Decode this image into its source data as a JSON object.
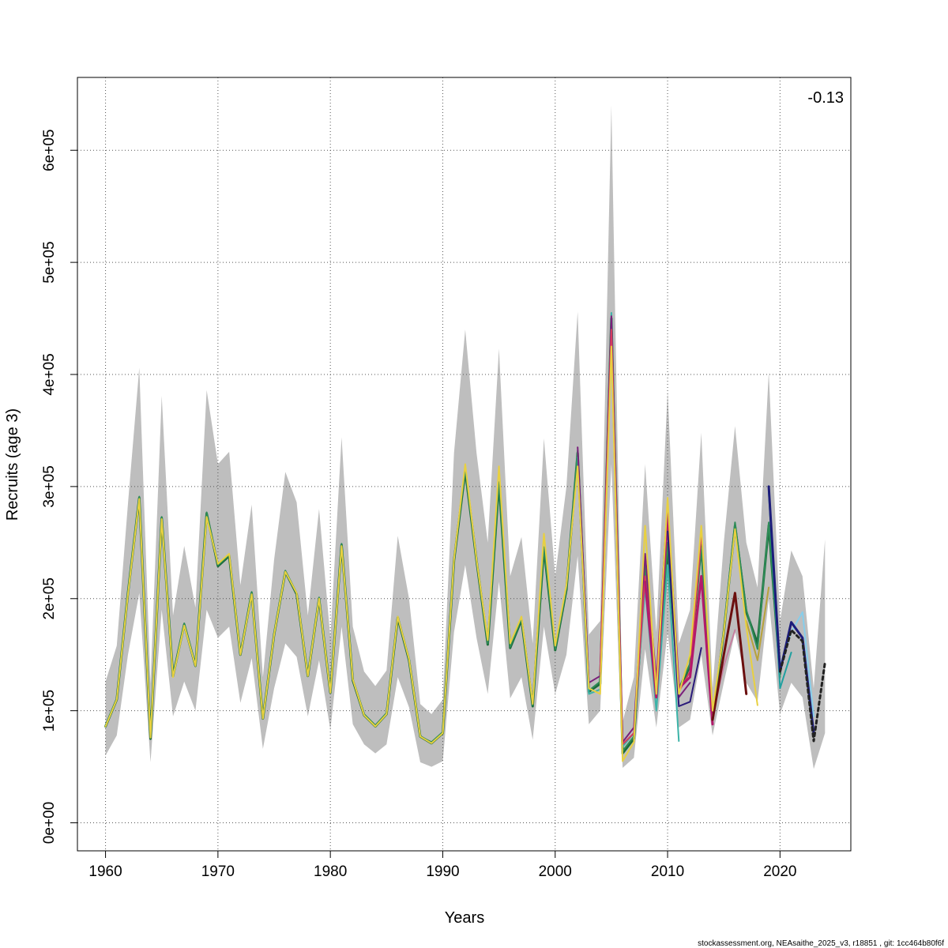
{
  "chart_data": {
    "type": "line",
    "title": "",
    "xlabel": "Years",
    "ylabel": "Recruits (age 3)",
    "annotation": "-0.13",
    "footer": "stockassessment.org, NEAsaithe_2025_v3, r18851 , git: 1cc464b80f6f",
    "xlim": [
      1957.5,
      2026.3
    ],
    "ylim": [
      -25000,
      665000
    ],
    "x_ticks": [
      1960,
      1970,
      1980,
      1990,
      2000,
      2010,
      2020
    ],
    "x_tick_labels": [
      "1960",
      "1970",
      "1980",
      "1990",
      "2000",
      "2010",
      "2020"
    ],
    "y_ticks": [
      0,
      100000,
      200000,
      300000,
      400000,
      500000,
      600000
    ],
    "y_tick_labels": [
      "0e+00",
      "1e+05",
      "2e+05",
      "3e+05",
      "4e+05",
      "5e+05",
      "6e+05"
    ],
    "grid": true,
    "confidence_band": {
      "name": "95% CI",
      "color": "#bebebe",
      "x": [
        1960,
        1961,
        1962,
        1963,
        1964,
        1965,
        1966,
        1967,
        1968,
        1969,
        1970,
        1971,
        1972,
        1973,
        1974,
        1975,
        1976,
        1977,
        1978,
        1979,
        1980,
        1981,
        1982,
        1983,
        1984,
        1985,
        1986,
        1987,
        1988,
        1989,
        1990,
        1991,
        1992,
        1993,
        1994,
        1995,
        1996,
        1997,
        1998,
        1999,
        2000,
        2001,
        2002,
        2003,
        2004,
        2005,
        2006,
        2007,
        2008,
        2009,
        2010,
        2011,
        2012,
        2013,
        2014,
        2015,
        2016,
        2017,
        2018,
        2019,
        2020,
        2021,
        2022,
        2023,
        2024
      ],
      "upper": [
        126000,
        158000,
        285000,
        406000,
        124000,
        381000,
        185000,
        247000,
        192000,
        386000,
        320000,
        331000,
        212000,
        284000,
        130000,
        235000,
        313000,
        286000,
        185000,
        280000,
        165000,
        344000,
        175000,
        135000,
        122000,
        136000,
        256000,
        200000,
        106000,
        97000,
        110000,
        330000,
        440000,
        330000,
        250000,
        423000,
        220000,
        255000,
        160000,
        343000,
        220000,
        300000,
        456000,
        168000,
        180000,
        640000,
        90000,
        130000,
        320000,
        170000,
        385000,
        160000,
        190000,
        348000,
        120000,
        250000,
        354000,
        250000,
        210000,
        402000,
        180000,
        243000,
        220000,
        120000,
        253000
      ],
      "lower": [
        60000,
        78000,
        150000,
        205000,
        54000,
        190000,
        95000,
        126000,
        100000,
        190000,
        165000,
        175000,
        107000,
        147000,
        66000,
        120000,
        160000,
        148000,
        95000,
        145000,
        83000,
        175000,
        88000,
        70000,
        62000,
        70000,
        130000,
        103000,
        54000,
        50000,
        55000,
        170000,
        230000,
        165000,
        115000,
        215000,
        111000,
        130000,
        74000,
        175000,
        115000,
        150000,
        238000,
        88000,
        100000,
        320000,
        49000,
        58000,
        155000,
        85000,
        170000,
        85000,
        92000,
        150000,
        78000,
        125000,
        170000,
        125000,
        108000,
        200000,
        97000,
        125000,
        112000,
        48000,
        80000
      ]
    },
    "series": [
      {
        "name": "",
        "color": "#1b6b3a",
        "width": 3,
        "dash": "",
        "x": [
          1960,
          1961,
          1962,
          1963,
          1964,
          1965,
          1966,
          1967,
          1968,
          1969,
          1970,
          1971,
          1972,
          1973,
          1974,
          1975,
          1976,
          1977,
          1978,
          1979,
          1980,
          1981,
          1982,
          1983,
          1984,
          1985,
          1986,
          1987,
          1988,
          1989,
          1990,
          1991,
          1992,
          1993,
          1994,
          1995,
          1996,
          1997,
          1998,
          1999,
          2000,
          2001,
          2002,
          2003,
          2004,
          2005,
          2006,
          2007,
          2008,
          2009,
          2010,
          2011,
          2012,
          2013,
          2014,
          2015,
          2016,
          2017,
          2018,
          2019,
          2020
        ],
        "values": [
          86000,
          110000,
          205000,
          290000,
          75000,
          272000,
          131000,
          177000,
          140000,
          276000,
          229000,
          238000,
          150000,
          205000,
          93000,
          168000,
          224000,
          204000,
          131000,
          200000,
          116000,
          248000,
          127000,
          96000,
          86000,
          97000,
          183000,
          145000,
          77000,
          71000,
          80000,
          234000,
          314000,
          234000,
          159000,
          303000,
          156000,
          181000,
          104000,
          245000,
          154000,
          208000,
          330000,
          117000,
          124000,
          450000,
          62000,
          75000,
          225000,
          115000,
          245000,
          118000,
          140000,
          248000,
          92000,
          170000,
          265000,
          188000,
          160000,
          265000,
          133000
        ]
      },
      {
        "name": "",
        "color": "#2e8b57",
        "width": 2,
        "dash": "",
        "x": [
          1960,
          1961,
          1962,
          1963,
          1964,
          1965,
          1966,
          1967,
          1968,
          1969,
          1970,
          1971,
          1972,
          1973,
          1974,
          1975,
          1976,
          1977,
          1978,
          1979,
          1980,
          1981,
          1982,
          1983,
          1984,
          1985,
          1986,
          1987,
          1988,
          1989,
          1990,
          1991,
          1992,
          1993,
          1994,
          1995,
          1996,
          1997,
          1998,
          1999,
          2000,
          2001,
          2002,
          2003,
          2004,
          2005,
          2006,
          2007,
          2008,
          2009,
          2010,
          2011,
          2012,
          2013,
          2014,
          2015,
          2016,
          2017,
          2018,
          2019,
          2020
        ],
        "values": [
          87000,
          111000,
          206000,
          291000,
          77000,
          273000,
          132000,
          178000,
          141000,
          277000,
          230000,
          239000,
          150000,
          206000,
          94000,
          169000,
          225000,
          205000,
          132000,
          201000,
          117000,
          249000,
          128000,
          97000,
          87000,
          98000,
          184000,
          146000,
          77000,
          72000,
          81000,
          235000,
          315000,
          235000,
          160000,
          304000,
          157000,
          182000,
          105000,
          246000,
          155000,
          209000,
          332000,
          118000,
          126000,
          445000,
          64000,
          77000,
          230000,
          118000,
          250000,
          120000,
          142000,
          245000,
          95000,
          172000,
          268000,
          190000,
          155000,
          268000,
          130000
        ]
      },
      {
        "name": "",
        "color": "#3cb3a8",
        "width": 2,
        "dash": "",
        "x": [
          2002,
          2003,
          2004,
          2005,
          2006,
          2007,
          2008,
          2009,
          2010,
          2011
        ],
        "values": [
          326000,
          115000,
          119000,
          455000,
          68000,
          80000,
          210000,
          100000,
          230000,
          73000
        ]
      },
      {
        "name": "",
        "color": "#7a1f7a",
        "width": 2,
        "dash": "",
        "x": [
          2002,
          2003,
          2004,
          2005,
          2006,
          2007,
          2008,
          2009,
          2010,
          2011,
          2012
        ],
        "values": [
          335000,
          125000,
          131000,
          452000,
          72000,
          85000,
          240000,
          128000,
          285000,
          112000,
          125000
        ]
      },
      {
        "name": "",
        "color": "#d63a5e",
        "width": 2,
        "dash": "",
        "x": [
          2004,
          2005,
          2006,
          2007,
          2008,
          2009,
          2010,
          2011,
          2012,
          2013
        ],
        "values": [
          135000,
          440000,
          70000,
          80000,
          220000,
          125000,
          280000,
          117000,
          135000,
          255000
        ]
      },
      {
        "name": "",
        "color": "#b3196b",
        "width": 3,
        "dash": "",
        "x": [
          2008,
          2009,
          2010,
          2011,
          2012,
          2013,
          2014
        ],
        "values": [
          215000,
          112000,
          275000,
          120000,
          130000,
          220000,
          88000
        ]
      },
      {
        "name": "",
        "color": "#2a1a7a",
        "width": 2,
        "dash": "",
        "x": [
          2010,
          2011,
          2012,
          2013
        ],
        "values": [
          260000,
          104000,
          108000,
          156000
        ]
      },
      {
        "name": "",
        "color": "#c77fa0",
        "width": 2,
        "dash": "",
        "x": [
          2014,
          2015,
          2016
        ],
        "values": [
          95000,
          140000,
          172000
        ]
      },
      {
        "name": "",
        "color": "#6b0f0f",
        "width": 3,
        "dash": "",
        "x": [
          2014,
          2015,
          2016,
          2017
        ],
        "values": [
          92000,
          150000,
          205000,
          115000
        ]
      },
      {
        "name": "",
        "color": "#b8a23a",
        "width": 2,
        "dash": "",
        "x": [
          2017,
          2018,
          2019
        ],
        "values": [
          180000,
          145000,
          210000
        ]
      },
      {
        "name": "",
        "color": "#e8d040",
        "width": 2,
        "dash": "",
        "x": [
          1960,
          1961,
          1962,
          1963,
          1964,
          1965,
          1966,
          1967,
          1968,
          1969,
          1970,
          1971,
          1972,
          1973,
          1974,
          1975,
          1976,
          1977,
          1978,
          1979,
          1980,
          1981,
          1982,
          1983,
          1984,
          1985,
          1986,
          1987,
          1988,
          1989,
          1990,
          1991,
          1992,
          1993,
          1994,
          1995,
          1996,
          1997,
          1998,
          1999,
          2000,
          2001,
          2002,
          2003,
          2004,
          2005,
          2006,
          2007,
          2008,
          2009,
          2010,
          2011,
          2012,
          2013,
          2014,
          2015,
          2016,
          2017,
          2018
        ],
        "values": [
          86000,
          110000,
          204000,
          289000,
          76000,
          271000,
          130000,
          176000,
          140000,
          273000,
          231000,
          240000,
          150000,
          204000,
          93000,
          168000,
          224000,
          205000,
          131000,
          200000,
          116000,
          247000,
          128000,
          96000,
          86000,
          97000,
          184000,
          146000,
          77000,
          71000,
          80000,
          235000,
          320000,
          235000,
          163000,
          318000,
          160000,
          184000,
          106000,
          258000,
          158000,
          212000,
          318000,
          120000,
          115000,
          425000,
          55000,
          72000,
          265000,
          115000,
          290000,
          115000,
          150000,
          265000,
          100000,
          170000,
          262000,
          175000,
          105000
        ]
      },
      {
        "name": "",
        "color": "#20a0a0",
        "width": 2,
        "dash": "",
        "x": [
          2019,
          2020,
          2021
        ],
        "values": [
          295000,
          120000,
          152000
        ]
      },
      {
        "name": "",
        "color": "#87ceeb",
        "width": 2,
        "dash": "",
        "x": [
          2020,
          2021,
          2022,
          2023
        ],
        "values": [
          140000,
          170000,
          188000,
          95000
        ]
      },
      {
        "name": "",
        "color": "#1c1c7a",
        "width": 3,
        "dash": "",
        "x": [
          2019,
          2020,
          2021,
          2022,
          2023
        ],
        "values": [
          300000,
          135000,
          179000,
          165000,
          80000
        ]
      },
      {
        "name": "",
        "color": "#222222",
        "width": 3,
        "dash": "4,4",
        "x": [
          2020,
          2021,
          2022,
          2023,
          2024
        ],
        "values": [
          135000,
          172000,
          162000,
          73000,
          143000
        ]
      }
    ]
  }
}
